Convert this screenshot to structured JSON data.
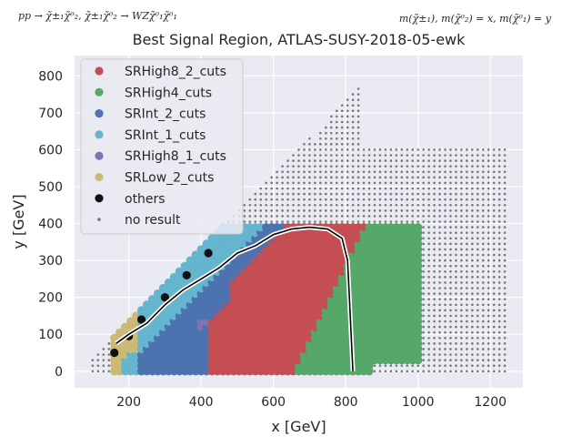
{
  "chart_data": {
    "type": "scatter",
    "title": "Best Signal Region, ATLAS-SUSY-2018-05-ewk",
    "xlabel": "x [GeV]",
    "ylabel": "y [GeV]",
    "corner_left": "pp → χ̃±₁χ̃⁰₂, χ̃±₁χ̃⁰₂ → WZχ̃⁰₁χ̃⁰₁",
    "corner_right": "m(χ̃±₁), m(χ̃⁰₂) = x, m(χ̃⁰₁) = y",
    "xlim": [
      50,
      1290
    ],
    "ylim": [
      -45,
      855
    ],
    "xticks": [
      "200",
      "400",
      "600",
      "800",
      "1000",
      "1200"
    ],
    "yticks": [
      "0",
      "100",
      "200",
      "300",
      "400",
      "500",
      "600",
      "700",
      "800"
    ],
    "xtick_values": [
      200,
      400,
      600,
      800,
      1000,
      1200
    ],
    "ytick_values": [
      0,
      100,
      200,
      300,
      400,
      500,
      600,
      700,
      800
    ],
    "grid": true,
    "legend_position": "top-left",
    "series": [
      {
        "name": "SRHigh8_2_cuts",
        "color": "#c44e52",
        "marker": "circle"
      },
      {
        "name": "SRHigh4_cuts",
        "color": "#55a868",
        "marker": "circle"
      },
      {
        "name": "SRInt_2_cuts",
        "color": "#4c72b0",
        "marker": "circle"
      },
      {
        "name": "SRInt_1_cuts",
        "color": "#64b5cd",
        "marker": "circle"
      },
      {
        "name": "SRHigh8_1_cuts",
        "color": "#8172b2",
        "marker": "circle"
      },
      {
        "name": "SRLow_2_cuts",
        "color": "#ccb974",
        "marker": "circle"
      },
      {
        "name": "others",
        "color": "#111111",
        "marker": "circle",
        "points": [
          [
            160,
            50
          ],
          [
            200,
            95
          ],
          [
            235,
            140
          ],
          [
            300,
            200
          ],
          [
            360,
            260
          ],
          [
            420,
            320
          ]
        ]
      },
      {
        "name": "no result",
        "color": "#777777",
        "marker": "small-dot"
      }
    ],
    "exclusion_contour": [
      [
        165,
        75
      ],
      [
        200,
        100
      ],
      [
        250,
        130
      ],
      [
        300,
        180
      ],
      [
        350,
        220
      ],
      [
        400,
        250
      ],
      [
        450,
        280
      ],
      [
        500,
        320
      ],
      [
        550,
        340
      ],
      [
        600,
        370
      ],
      [
        650,
        385
      ],
      [
        700,
        390
      ],
      [
        750,
        385
      ],
      [
        790,
        360
      ],
      [
        805,
        300
      ],
      [
        810,
        200
      ],
      [
        815,
        100
      ],
      [
        820,
        0
      ]
    ]
  }
}
